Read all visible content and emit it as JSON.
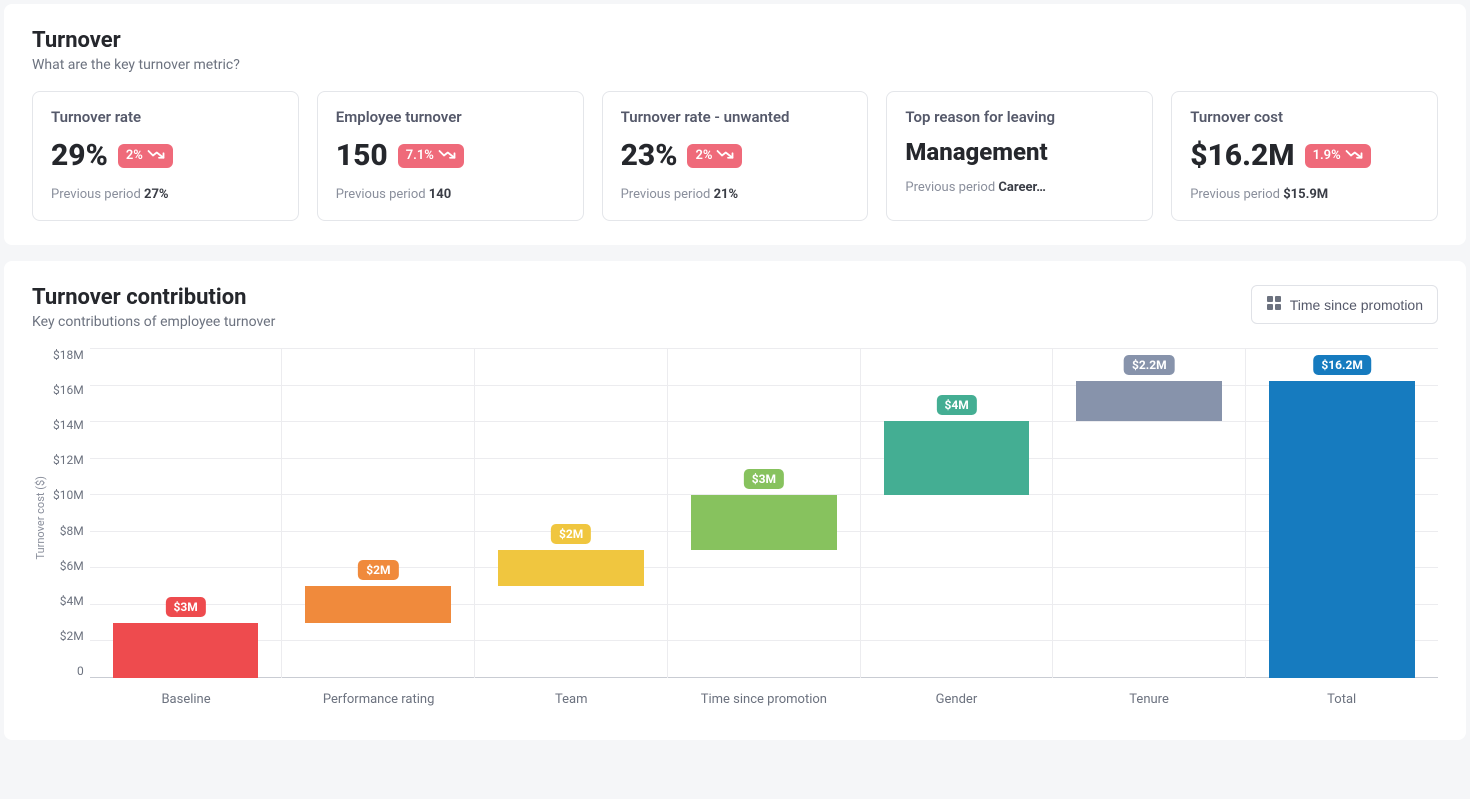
{
  "colors": {
    "badge_bg": "#ef6a7a",
    "page_bg": "#f5f6f8",
    "card_border": "#e4e6ea",
    "grid": "#ececef",
    "axis": "#c9ccd3",
    "text_primary": "#25272c",
    "text_secondary": "#6c727f"
  },
  "turnover": {
    "title": "Turnover",
    "subtitle": "What are the key turnover metric?",
    "cards": [
      {
        "label": "Turnover rate",
        "value": "29%",
        "delta": "2%",
        "prev_label": "Previous period",
        "prev_value": "27%",
        "has_badge": true
      },
      {
        "label": "Employee turnover",
        "value": "150",
        "delta": "7.1%",
        "prev_label": "Previous period",
        "prev_value": "140",
        "has_badge": true
      },
      {
        "label": "Turnover rate - unwanted",
        "value": "23%",
        "delta": "2%",
        "prev_label": "Previous period",
        "prev_value": "21%",
        "has_badge": true
      },
      {
        "label": "Top reason for leaving",
        "value": "Management",
        "delta": "",
        "prev_label": "Previous period",
        "prev_value": "Career…",
        "has_badge": false,
        "text_value": true
      },
      {
        "label": "Turnover cost",
        "value": "$16.2M",
        "delta": "1.9%",
        "prev_label": "Previous period",
        "prev_value": "$15.9M",
        "has_badge": true
      }
    ]
  },
  "contribution": {
    "title": "Turnover contribution",
    "subtitle": "Key contributions of employee turnover",
    "button_label": "Time since promotion",
    "y_axis_label": "Turnover cost ($)",
    "y_max": 18,
    "y_ticks": [
      "$18M",
      "$16M",
      "$14M",
      "$12M",
      "$10M",
      "$8M",
      "$6M",
      "$4M",
      "$2M",
      "0"
    ],
    "bars": [
      {
        "name": "Baseline",
        "start": 0,
        "end": 3,
        "label": "$3M",
        "color": "#ee4b4e"
      },
      {
        "name": "Performance rating",
        "start": 3,
        "end": 5,
        "label": "$2M",
        "color": "#f08a3c"
      },
      {
        "name": "Team",
        "start": 5,
        "end": 7,
        "label": "$2M",
        "color": "#f0c63f"
      },
      {
        "name": "Time since promotion",
        "start": 7,
        "end": 10,
        "label": "$3M",
        "color": "#87c25e"
      },
      {
        "name": "Gender",
        "start": 10,
        "end": 14,
        "label": "$4M",
        "color": "#44ae93"
      },
      {
        "name": "Tenure",
        "start": 14,
        "end": 16.2,
        "label": "$2.2M",
        "color": "#8793ab"
      },
      {
        "name": "Total",
        "start": 0,
        "end": 16.2,
        "label": "$16.2M",
        "color": "#167bbf"
      }
    ]
  }
}
